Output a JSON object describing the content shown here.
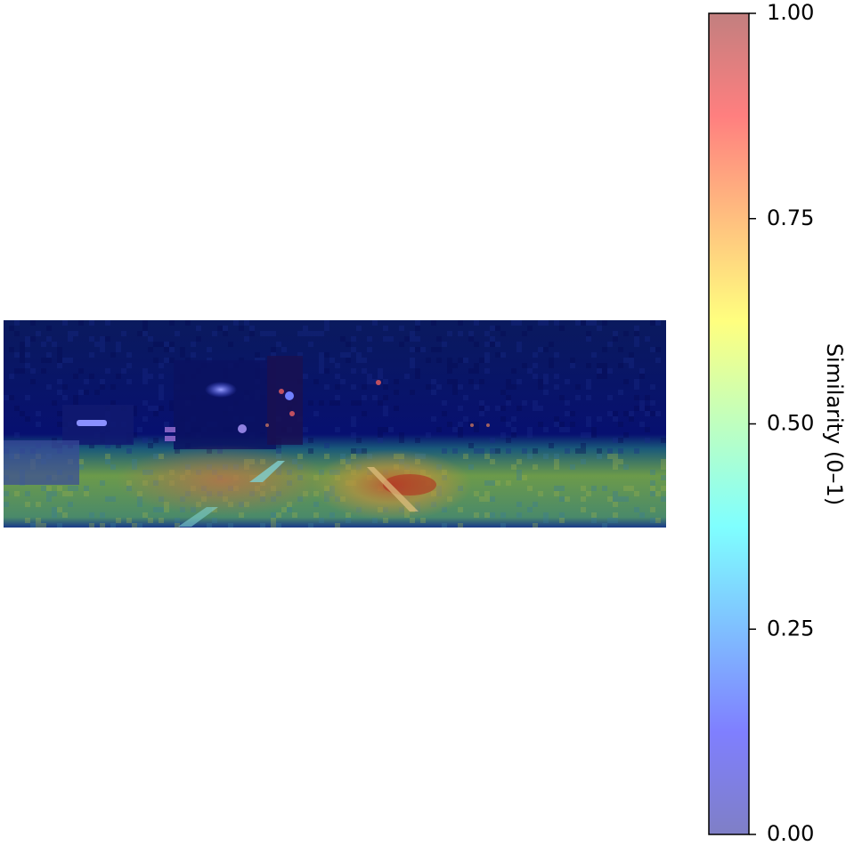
{
  "chart_data": {
    "type": "heatmap",
    "title": "",
    "colorbar": {
      "label": "Similarity (0–1)",
      "range": [
        0,
        1
      ],
      "ticks": [
        {
          "value": 0.0,
          "label": "0.00"
        },
        {
          "value": 0.25,
          "label": "0.25"
        },
        {
          "value": 0.5,
          "label": "0.50"
        },
        {
          "value": 0.75,
          "label": "0.75"
        },
        {
          "value": 1.0,
          "label": "1.00"
        }
      ],
      "colormap": "jet",
      "alpha": 0.5
    },
    "image_content": "night road scene with similarity overlay",
    "regions": [
      {
        "name": "sky-and-buildings",
        "similarity": 0.02
      },
      {
        "name": "road-surface",
        "similarity": 0.55
      },
      {
        "name": "lane-markings-right",
        "similarity": 0.8
      }
    ],
    "axes_visible": false
  }
}
